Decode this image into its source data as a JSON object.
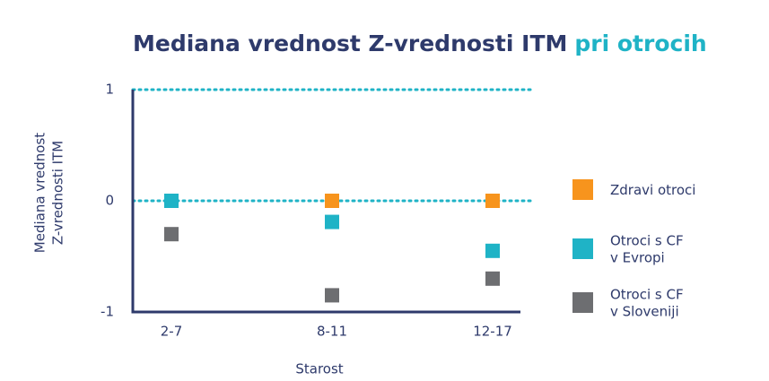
{
  "chart_data": {
    "type": "scatter",
    "title": {
      "main": "Mediana vrednost Z-vrednosti ITM",
      "highlight": "pri otrocih"
    },
    "x_label": "Starost",
    "y_label": [
      "Mediana vrednost",
      "Z-vrednosti ITM"
    ],
    "categories": [
      "2-7",
      "8-11",
      "12-17"
    ],
    "series": [
      {
        "name": "Zdravi otroci",
        "color": "#f7941d",
        "values": [
          0,
          0,
          0
        ]
      },
      {
        "name": "Otroci s CF\nv Evropi",
        "color": "#1fb3c6",
        "values": [
          0,
          -0.19,
          -0.45
        ]
      },
      {
        "name": "Otroci s CF\nv Sloveniji",
        "color": "#6d6e71",
        "values": [
          -0.3,
          -0.85,
          -0.7
        ]
      }
    ],
    "ylim": [
      -1,
      1
    ],
    "yticks": [
      -1,
      0,
      1
    ],
    "grid": true,
    "legend": "right"
  }
}
